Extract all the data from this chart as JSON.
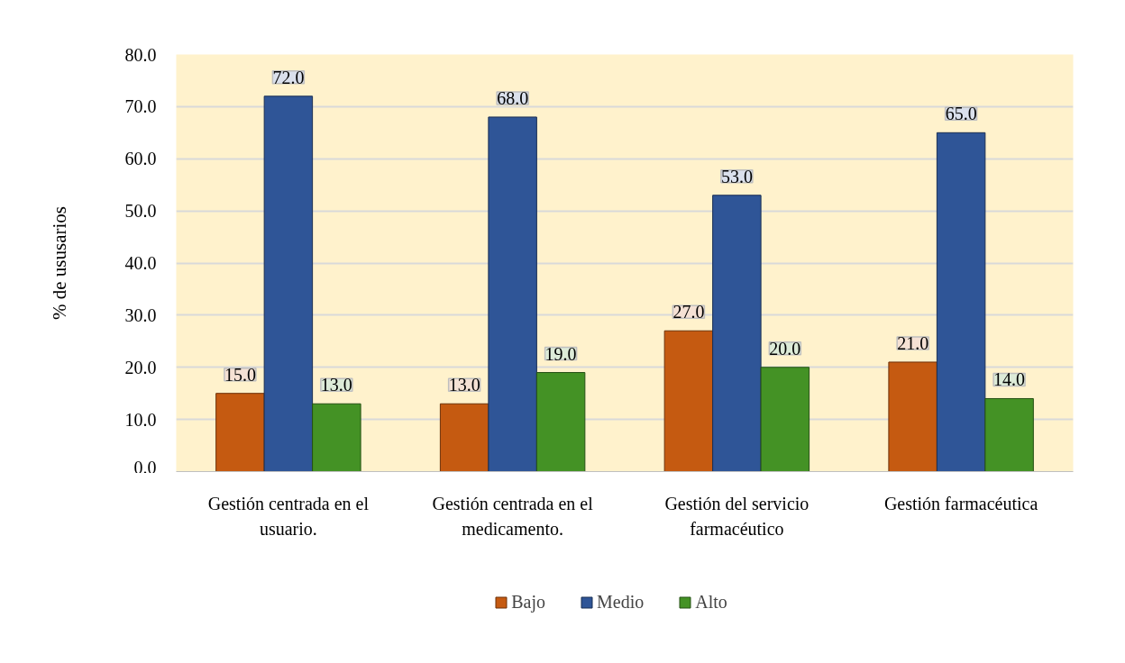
{
  "chart_data": {
    "type": "bar",
    "ylabel": "% de ususarios",
    "categories": [
      "Gestión centrada en el usuario.",
      "Gestión centrada en el medicamento.",
      "Gestión del servicio farmacéutico",
      "Gestión farmacéutica"
    ],
    "series": [
      {
        "name": "Bajo",
        "color": "#c55a11",
        "values": [
          15,
          13,
          27,
          21
        ],
        "value_labels": [
          "15.0",
          "13.0",
          "27.0",
          "21.0"
        ]
      },
      {
        "name": "Medio",
        "color": "#2f5597",
        "values": [
          72,
          68,
          53,
          65
        ],
        "value_labels": [
          "72.0",
          "68.0",
          "53.0",
          "65.0"
        ]
      },
      {
        "name": "Alto",
        "color": "#449225",
        "values": [
          13,
          19,
          20,
          14
        ],
        "value_labels": [
          "13.0",
          "19.0",
          "20.0",
          "14.0"
        ]
      }
    ],
    "ylim": [
      0,
      80
    ],
    "yticks": [
      {
        "value": 0,
        "label": "0.0"
      },
      {
        "value": 10,
        "label": "10.0"
      },
      {
        "value": 20,
        "label": "20.0"
      },
      {
        "value": 30,
        "label": "30.0"
      },
      {
        "value": 40,
        "label": "40.0"
      },
      {
        "value": 50,
        "label": "50.0"
      },
      {
        "value": 60,
        "label": "60.0"
      },
      {
        "value": 70,
        "label": "70.0"
      },
      {
        "value": 80,
        "label": "80.0"
      }
    ],
    "grid": "y",
    "legend": "bottom"
  }
}
